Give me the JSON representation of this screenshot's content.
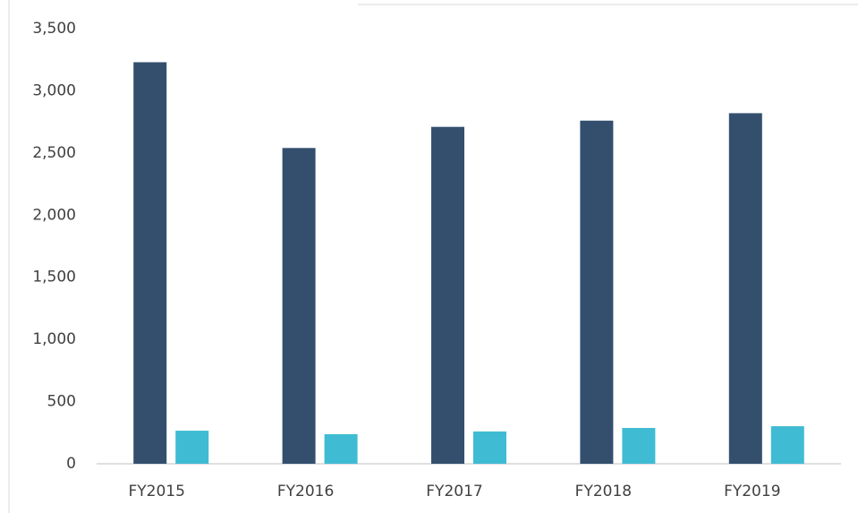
{
  "chart_data": {
    "type": "bar",
    "categories": [
      "FY2015",
      "FY2016",
      "FY2017",
      "FY2018",
      "FY2019"
    ],
    "series": [
      {
        "color": "#344f6e",
        "values": [
          3230,
          2540,
          2710,
          2760,
          2820
        ]
      },
      {
        "color": "#3fbcd3",
        "values": [
          266,
          238,
          260,
          288,
          302
        ]
      }
    ],
    "ylim": [
      0,
      3500
    ],
    "yticks": [
      0,
      500,
      {
        "value": 1000,
        "label": "1,000"
      },
      {
        "value": 1500,
        "label": "1,500"
      },
      {
        "value": 2000,
        "label": "2,000"
      },
      {
        "value": 2500,
        "label": "2,500"
      },
      {
        "value": 3000,
        "label": "3,000"
      },
      {
        "value": 3500,
        "label": "3,500"
      }
    ],
    "grid": false
  }
}
